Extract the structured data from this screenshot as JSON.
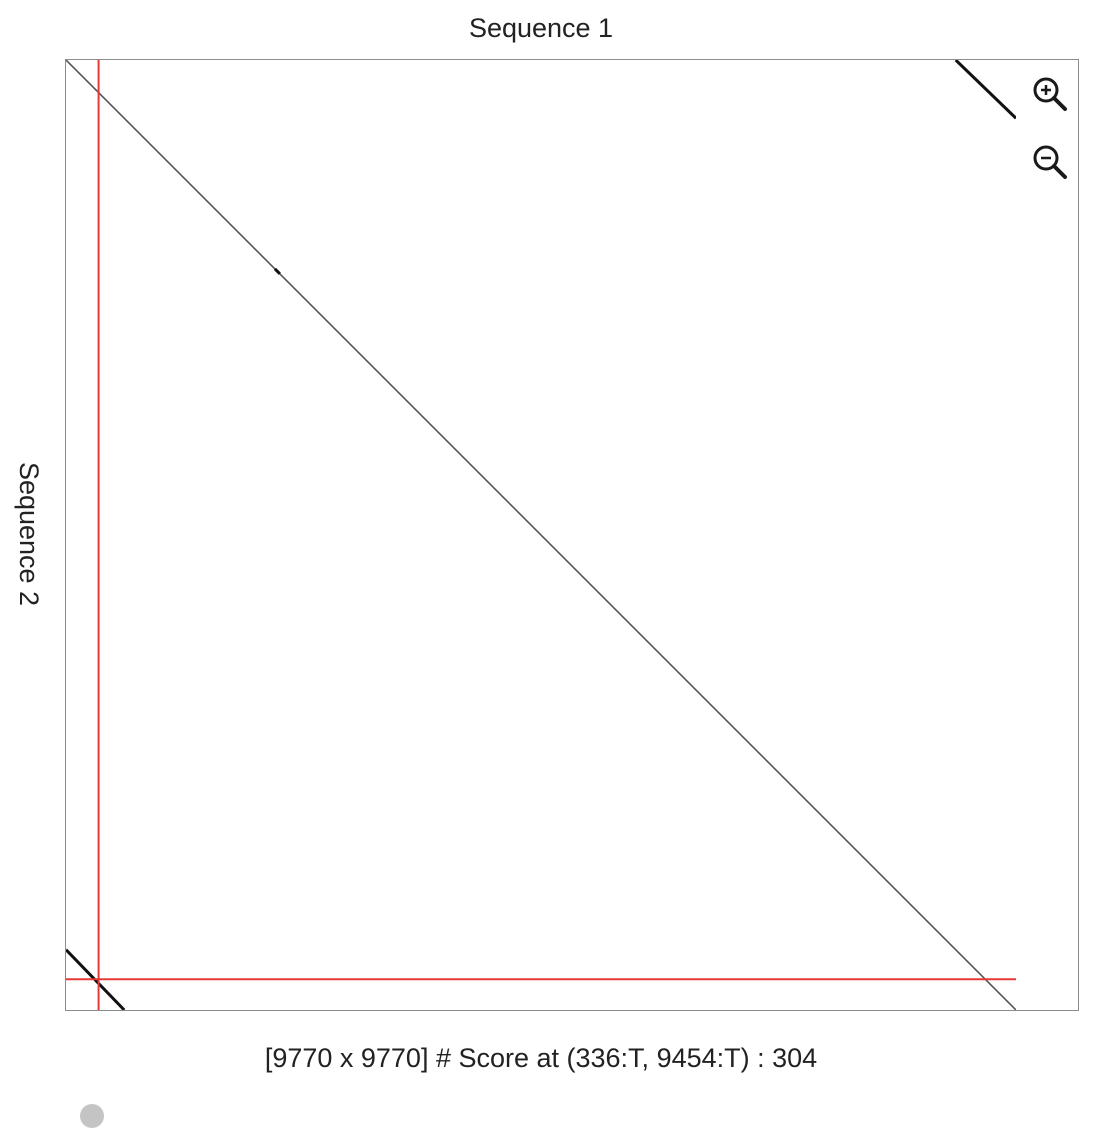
{
  "chart_data": {
    "type": "dotplot",
    "xlabel": "Sequence 1",
    "ylabel": "Sequence 2",
    "xlim": [
      1,
      9770
    ],
    "ylim": [
      1,
      9770
    ],
    "segments": [
      {
        "x1": 1,
        "y1": 1,
        "x2": 9770,
        "y2": 9770,
        "weight": "thin"
      },
      {
        "x1": 2150,
        "y1": 2150,
        "x2": 2200,
        "y2": 2200,
        "weight": "heavy"
      },
      {
        "x1": 9150,
        "y1": 1,
        "x2": 9770,
        "y2": 600,
        "weight": "heavy"
      },
      {
        "x1": 1,
        "y1": 9150,
        "x2": 600,
        "y2": 9770,
        "weight": "heavy"
      }
    ],
    "crosshair": {
      "x": 336,
      "y": 9454
    },
    "colors": {
      "dots": "#555555",
      "dots_heavy": "#111111",
      "crosshair": "#e53935"
    }
  },
  "toolbar": {
    "zoom_in_icon": "zoom-in-icon",
    "zoom_out_icon": "zoom-out-icon"
  },
  "status": {
    "text": "[9770 x 9770] # Score at (336:T, 9454:T) : 304"
  }
}
